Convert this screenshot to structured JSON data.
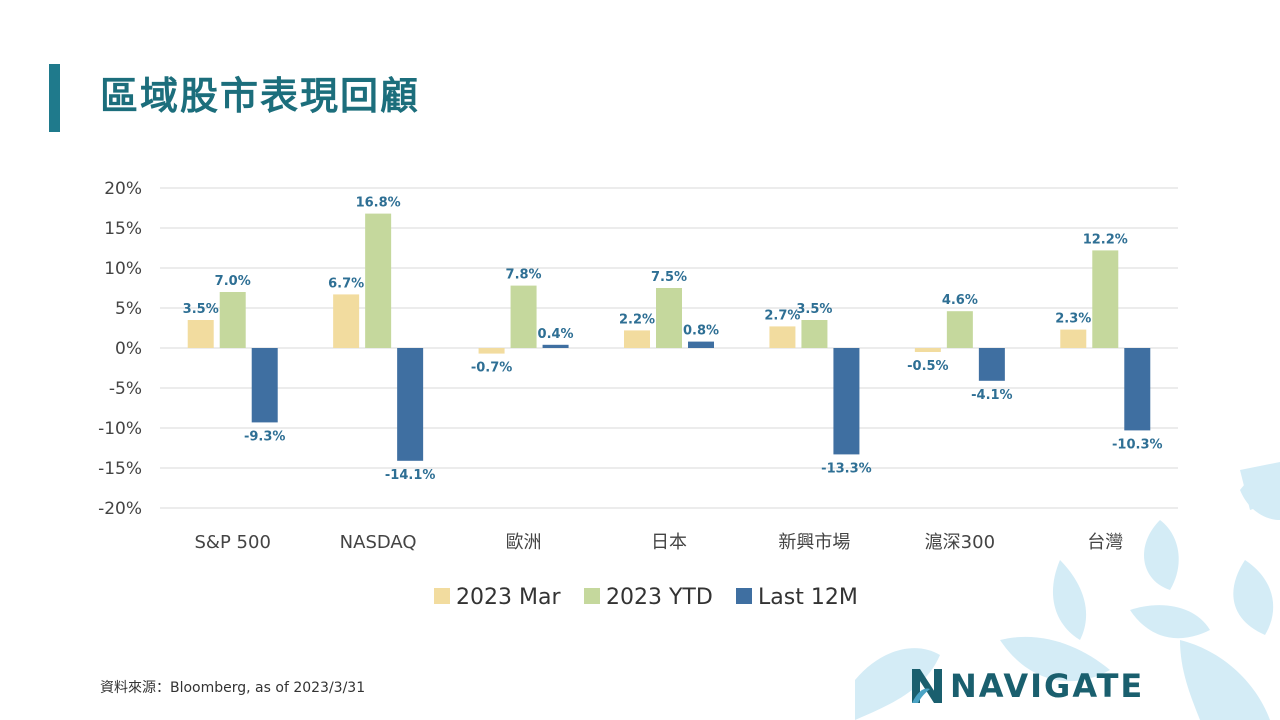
{
  "title": "區域股市表現回顧",
  "source": "資料來源：Bloomberg, as of 2023/3/31",
  "logo": {
    "text": "NAVIGATE",
    "icon": "navigate-logo-icon"
  },
  "colors": {
    "accent": "#1f7a8c",
    "title": "#1c6e7c",
    "mar": "#f2dc9f",
    "ytd": "#c5d89d",
    "last12": "#3f6fa1",
    "label": "#2e6f94"
  },
  "chart_data": {
    "type": "bar",
    "categories": [
      "S&P 500",
      "NASDAQ",
      "歐洲",
      "日本",
      "新興市場",
      "滬深300",
      "台灣"
    ],
    "series": [
      {
        "name": "2023 Mar",
        "values": [
          3.5,
          6.7,
          -0.7,
          2.2,
          2.7,
          -0.5,
          2.3
        ],
        "labels": [
          "3.5%",
          "6.7%",
          "-0.7%",
          "2.2%",
          "2.7%",
          "-0.5%",
          "2.3%"
        ]
      },
      {
        "name": "2023 YTD",
        "values": [
          7.0,
          16.8,
          7.8,
          7.5,
          3.5,
          4.6,
          12.2
        ],
        "labels": [
          "7.0%",
          "16.8%",
          "7.8%",
          "7.5%",
          "3.5%",
          "4.6%",
          "12.2%"
        ]
      },
      {
        "name": "Last 12M",
        "values": [
          -9.3,
          -14.1,
          0.4,
          0.8,
          -13.3,
          -4.1,
          -10.3
        ],
        "labels": [
          "-9.3%",
          "-14.1%",
          "0.4%",
          "0.8%",
          "-13.3%",
          "-4.1%",
          "-10.3%"
        ]
      }
    ],
    "yticks": [
      "20%",
      "15%",
      "10%",
      "5%",
      "0%",
      "-5%",
      "-10%",
      "-15%",
      "-20%"
    ],
    "ylim": [
      -20,
      20
    ],
    "grid": true,
    "legend": "bottom"
  }
}
